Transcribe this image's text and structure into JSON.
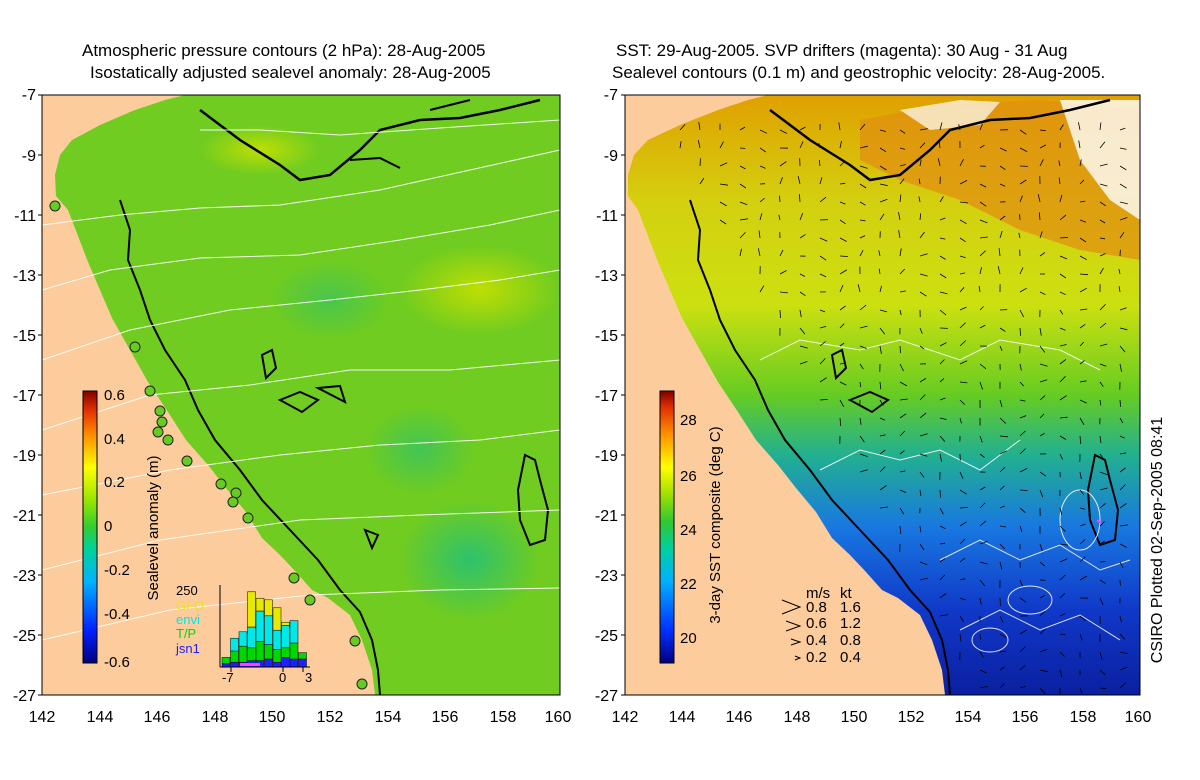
{
  "left_panel": {
    "title_line1": "Atmospheric pressure contours (2 hPa): 28-Aug-2005",
    "title_line2": "Isostatically adjusted sealevel anomaly: 28-Aug-2005",
    "colorbar": {
      "label": "Sealevel anomaly (m)",
      "ticks": [
        "0.6",
        "0.4",
        "0.2",
        "0",
        "-0.2",
        "-0.4",
        "-0.6"
      ]
    },
    "inset": {
      "y_max_label": "250",
      "legend": [
        {
          "text": "GFO",
          "color": "#e8e800"
        },
        {
          "text": "envi",
          "color": "#00e8e8"
        },
        {
          "text": "T/P",
          "color": "#00d800"
        },
        {
          "text": "jsn1",
          "color": "#2020ff"
        }
      ],
      "x_ticks": [
        "-7",
        "0",
        "3"
      ],
      "bars": [
        {
          "jsn1": 10,
          "tp": 20,
          "envi": 0,
          "gfo": 0
        },
        {
          "jsn1": 15,
          "tp": 35,
          "envi": 40,
          "gfo": 0
        },
        {
          "jsn1": 15,
          "tp": 50,
          "envi": 45,
          "gfo": 0
        },
        {
          "jsn1": 20,
          "tp": 40,
          "envi": 65,
          "gfo": 110
        },
        {
          "jsn1": 20,
          "tp": 60,
          "envi": 95,
          "gfo": 40
        },
        {
          "jsn1": 25,
          "tp": 45,
          "envi": 90,
          "gfo": 50
        },
        {
          "jsn1": 15,
          "tp": 40,
          "envi": 60,
          "gfo": 70
        },
        {
          "jsn1": 30,
          "tp": 30,
          "envi": 70,
          "gfo": 10
        },
        {
          "jsn1": 25,
          "tp": 50,
          "envi": 70,
          "gfo": 0
        },
        {
          "jsn1": 25,
          "tp": 20,
          "envi": 0,
          "gfo": 0
        }
      ]
    }
  },
  "right_panel": {
    "title_line1": "SST: 29-Aug-2005. SVP drifters (magenta): 30 Aug - 31 Aug",
    "title_line2": "Sealevel contours (0.1 m) and geostrophic velocity: 28-Aug-2005.",
    "colorbar": {
      "label": "3-day SST composite (deg C)",
      "ticks": [
        "28",
        "26",
        "24",
        "22",
        "20"
      ]
    },
    "velocity_key": {
      "header_ms": "m/s",
      "header_kt": "kt",
      "rows": [
        {
          "ms": "0.8",
          "kt": "1.6"
        },
        {
          "ms": "0.6",
          "kt": "1.2"
        },
        {
          "ms": "0.4",
          "kt": "0.8"
        },
        {
          "ms": "0.2",
          "kt": "0.4"
        }
      ]
    },
    "plotted_note": "CSIRO Plotted 02-Sep-2005 08:41"
  },
  "axes": {
    "lat_ticks": [
      "-7",
      "-9",
      "-11",
      "-13",
      "-15",
      "-17",
      "-19",
      "-21",
      "-23",
      "-25",
      "-27"
    ],
    "lon_ticks": [
      "142",
      "144",
      "146",
      "148",
      "150",
      "152",
      "154",
      "156",
      "158",
      "160"
    ]
  },
  "colors": {
    "land": "#fccc9c",
    "ocean_green": "#66cc22",
    "coast": "#000000"
  }
}
